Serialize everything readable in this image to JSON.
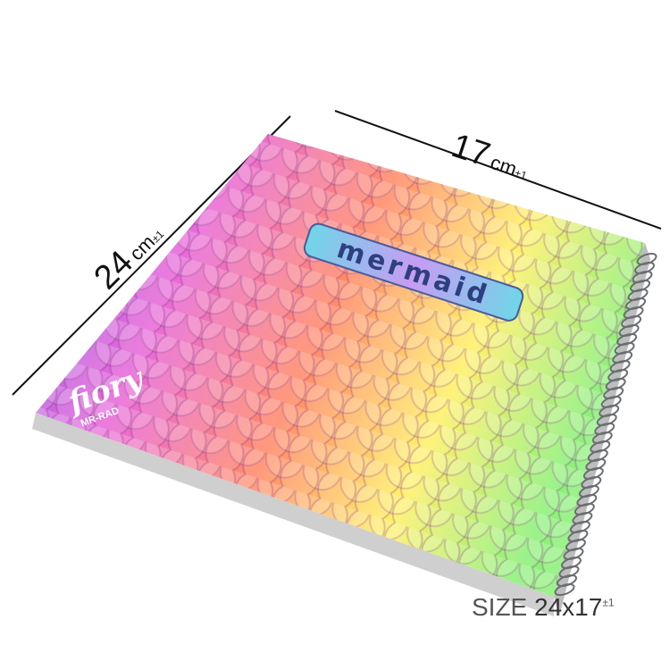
{
  "dimensions": {
    "height": {
      "value": "24",
      "unit": "cm",
      "tolerance": "±1"
    },
    "width": {
      "value": "17",
      "unit": "cm",
      "tolerance": "±1"
    }
  },
  "size_label": {
    "prefix": "SIZE",
    "value": "24x17",
    "tolerance": "±1"
  },
  "cover": {
    "brand_logo": "fiory",
    "brand_sub": "MR-RAD",
    "title_logo": "mermaid",
    "colors": [
      "#8a5cf0",
      "#e86ad8",
      "#ff8a6a",
      "#fff06a",
      "#8ef07a"
    ]
  }
}
